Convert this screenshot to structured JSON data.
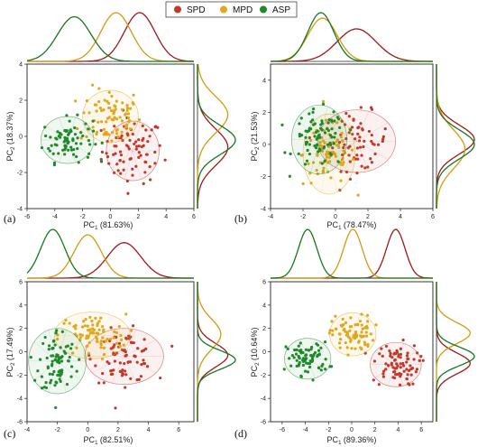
{
  "legend": [
    {
      "label": "SPD",
      "color": "#c0392b"
    },
    {
      "label": "MPD",
      "color": "#e0a81c"
    },
    {
      "label": "ASP",
      "color": "#1e8a2a"
    }
  ],
  "colors": {
    "SPD": "#c0392b",
    "MPD": "#e0a81c",
    "ASP": "#1e8a2a",
    "SPD_line": "#a01818",
    "MPD_line": "#d49a12",
    "ASP_line": "#17771f"
  },
  "chart_data": [
    {
      "type": "scatter",
      "panel_label": "(a)",
      "xlabel": "PC",
      "xlabel_sub": "1",
      "xlabel_pct": "(81.63%)",
      "ylabel": "PC",
      "ylabel_sub": "2",
      "ylabel_pct": "(18.37%)",
      "xlim": [
        -6,
        6
      ],
      "ylim": [
        -4,
        4
      ],
      "xticks": [
        -6,
        -4,
        -2,
        0,
        2,
        4,
        6
      ],
      "yticks": [
        -4,
        -2,
        0,
        2,
        4
      ],
      "groups": [
        {
          "name": "SPD",
          "center": [
            1.6,
            -0.8
          ],
          "spread": [
            1.1,
            0.9
          ],
          "n": 80,
          "ellipse_r": [
            1.9,
            1.65
          ]
        },
        {
          "name": "MPD",
          "center": [
            0.0,
            1.1
          ],
          "spread": [
            1.1,
            0.8
          ],
          "n": 80,
          "ellipse_r": [
            2.0,
            1.45
          ]
        },
        {
          "name": "ASP",
          "center": [
            -3.1,
            -0.2
          ],
          "spread": [
            0.9,
            0.6
          ],
          "n": 80,
          "ellipse_r": [
            1.9,
            1.3
          ]
        }
      ],
      "density_top": [
        {
          "name": "SPD",
          "mean": 2.1,
          "sd": 1.1
        },
        {
          "name": "MPD",
          "mean": 0.4,
          "sd": 1.1
        },
        {
          "name": "ASP",
          "mean": -2.6,
          "sd": 1.2
        }
      ],
      "density_right": [
        {
          "name": "SPD",
          "mean": -0.6,
          "sd": 1.0
        },
        {
          "name": "MPD",
          "mean": 1.2,
          "sd": 1.0
        },
        {
          "name": "ASP",
          "mean": -0.2,
          "sd": 0.8
        }
      ]
    },
    {
      "type": "scatter",
      "panel_label": "(b)",
      "xlabel": "PC",
      "xlabel_sub": "1",
      "xlabel_pct": "(78.47%)",
      "ylabel": "PC",
      "ylabel_sub": "2",
      "ylabel_pct": "(21.53%)",
      "xlim": [
        -4,
        6
      ],
      "ylim": [
        -4,
        5
      ],
      "xticks": [
        -4,
        -2,
        0,
        2,
        4,
        6
      ],
      "yticks": [
        -4,
        -2,
        0,
        2,
        4
      ],
      "groups": [
        {
          "name": "SPD",
          "center": [
            1.3,
            0.2
          ],
          "spread": [
            1.0,
            0.9
          ],
          "n": 70,
          "ellipse_r": [
            2.4,
            1.95
          ]
        },
        {
          "name": "MPD",
          "center": [
            -0.4,
            -0.6
          ],
          "spread": [
            0.8,
            1.0
          ],
          "n": 80,
          "ellipse_r": [
            1.6,
            2.5
          ]
        },
        {
          "name": "ASP",
          "center": [
            -1.0,
            0.3
          ],
          "spread": [
            0.8,
            0.9
          ],
          "n": 80,
          "ellipse_r": [
            1.7,
            2.15
          ]
        }
      ],
      "density_top": [
        {
          "name": "SPD",
          "mean": 1.3,
          "sd": 1.2
        },
        {
          "name": "MPD",
          "mean": -0.8,
          "sd": 0.9
        },
        {
          "name": "ASP",
          "mean": -0.9,
          "sd": 0.8
        }
      ],
      "density_right": [
        {
          "name": "SPD",
          "mean": 0.3,
          "sd": 0.9
        },
        {
          "name": "MPD",
          "mean": -0.3,
          "sd": 1.2
        },
        {
          "name": "ASP",
          "mean": 0.0,
          "sd": 0.9
        }
      ]
    },
    {
      "type": "scatter",
      "panel_label": "(c)",
      "xlabel": "PC",
      "xlabel_sub": "1",
      "xlabel_pct": "(82.51%)",
      "ylabel": "PC",
      "ylabel_sub": "2",
      "ylabel_pct": "(17.49%)",
      "xlim": [
        -4,
        7
      ],
      "ylim": [
        -6,
        6
      ],
      "xticks": [
        -4,
        -2,
        0,
        2,
        4,
        6
      ],
      "yticks": [
        -6,
        -4,
        -2,
        0,
        2,
        4,
        6
      ],
      "groups": [
        {
          "name": "SPD",
          "center": [
            2.4,
            -0.4
          ],
          "spread": [
            1.0,
            1.1
          ],
          "n": 80,
          "ellipse_r": [
            2.6,
            2.4
          ]
        },
        {
          "name": "MPD",
          "center": [
            0.3,
            1.4
          ],
          "spread": [
            1.1,
            0.9
          ],
          "n": 80,
          "ellipse_r": [
            2.5,
            2.0
          ]
        },
        {
          "name": "ASP",
          "center": [
            -2.0,
            -0.8
          ],
          "spread": [
            0.6,
            1.4
          ],
          "n": 80,
          "ellipse_r": [
            1.9,
            2.8
          ]
        }
      ],
      "density_top": [
        {
          "name": "SPD",
          "mean": 2.4,
          "sd": 1.1
        },
        {
          "name": "MPD",
          "mean": 0.0,
          "sd": 0.9
        },
        {
          "name": "ASP",
          "mean": -2.3,
          "sd": 0.8
        }
      ],
      "density_right": [
        {
          "name": "SPD",
          "mean": -0.3,
          "sd": 1.0
        },
        {
          "name": "MPD",
          "mean": 1.5,
          "sd": 1.3
        },
        {
          "name": "ASP",
          "mean": -0.7,
          "sd": 0.8
        }
      ]
    },
    {
      "type": "scatter",
      "panel_label": "(d)",
      "xlabel": "PC",
      "xlabel_sub": "1",
      "xlabel_pct": "(89.36%)",
      "ylabel": "PC",
      "ylabel_sub": "2",
      "ylabel_pct": "(10.64%)",
      "xlim": [
        -7,
        7
      ],
      "ylim": [
        -6,
        6
      ],
      "xticks": [
        -6,
        -4,
        -2,
        0,
        2,
        4,
        6
      ],
      "yticks": [
        -6,
        -4,
        -2,
        0,
        2,
        4,
        6
      ],
      "groups": [
        {
          "name": "SPD",
          "center": [
            3.8,
            -1.1
          ],
          "spread": [
            1.0,
            0.9
          ],
          "n": 80,
          "ellipse_r": [
            2.2,
            1.9
          ]
        },
        {
          "name": "MPD",
          "center": [
            0.1,
            1.5
          ],
          "spread": [
            0.9,
            0.8
          ],
          "n": 80,
          "ellipse_r": [
            2.0,
            1.85
          ]
        },
        {
          "name": "ASP",
          "center": [
            -3.8,
            -0.6
          ],
          "spread": [
            0.9,
            0.7
          ],
          "n": 80,
          "ellipse_r": [
            2.0,
            1.75
          ]
        }
      ],
      "density_top": [
        {
          "name": "SPD",
          "mean": 3.8,
          "sd": 0.8
        },
        {
          "name": "MPD",
          "mean": 0.1,
          "sd": 0.8
        },
        {
          "name": "ASP",
          "mean": -3.8,
          "sd": 0.8
        }
      ],
      "density_right": [
        {
          "name": "SPD",
          "mean": -1.0,
          "sd": 0.9
        },
        {
          "name": "MPD",
          "mean": 1.6,
          "sd": 0.9
        },
        {
          "name": "ASP",
          "mean": -0.4,
          "sd": 0.8
        }
      ]
    }
  ]
}
